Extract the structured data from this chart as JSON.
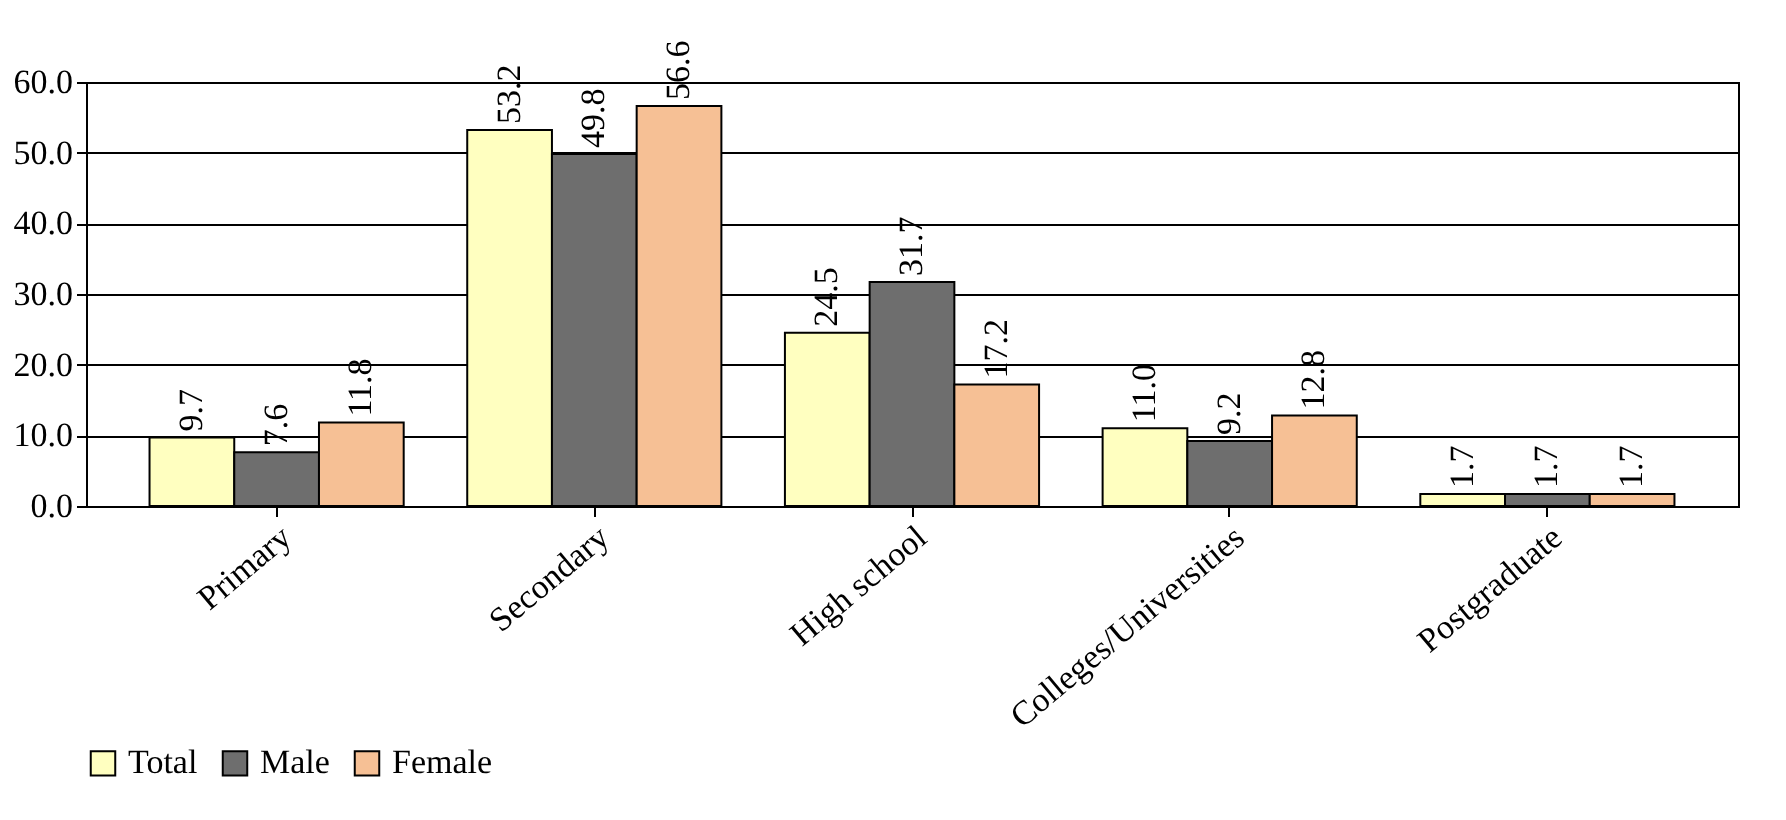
{
  "chart_data": {
    "type": "bar",
    "categories": [
      "Primary",
      "Secondary",
      "High school",
      "Colleges/Universities",
      "Postgraduate"
    ],
    "series": [
      {
        "name": "Total",
        "color": "#ffffc0",
        "values": [
          9.7,
          53.2,
          24.5,
          11.0,
          1.7
        ],
        "value_labels": [
          "9.7",
          "53.2",
          "24.5",
          "11.0",
          "1.7"
        ]
      },
      {
        "name": "Male",
        "color": "#6e6e6e",
        "values": [
          7.6,
          49.8,
          31.7,
          9.2,
          1.7
        ],
        "value_labels": [
          "7.6",
          "49.8",
          "31.7",
          "9.2",
          "1.7"
        ]
      },
      {
        "name": "Female",
        "color": "#f6c095",
        "values": [
          11.8,
          56.6,
          17.2,
          12.8,
          1.7
        ],
        "value_labels": [
          "11.8",
          "56.6",
          "17.2",
          "12.8",
          "1.7"
        ]
      }
    ],
    "ylim": [
      0,
      60
    ],
    "yticks": [
      {
        "value": 0,
        "label": "0.0"
      },
      {
        "value": 10,
        "label": "10.0"
      },
      {
        "value": 20,
        "label": "20.0"
      },
      {
        "value": 30,
        "label": "30.0"
      },
      {
        "value": 40,
        "label": "40.0"
      },
      {
        "value": 50,
        "label": "50.0"
      },
      {
        "value": 60,
        "label": "60.0"
      }
    ],
    "grid": "y",
    "legend": "bottom left"
  }
}
